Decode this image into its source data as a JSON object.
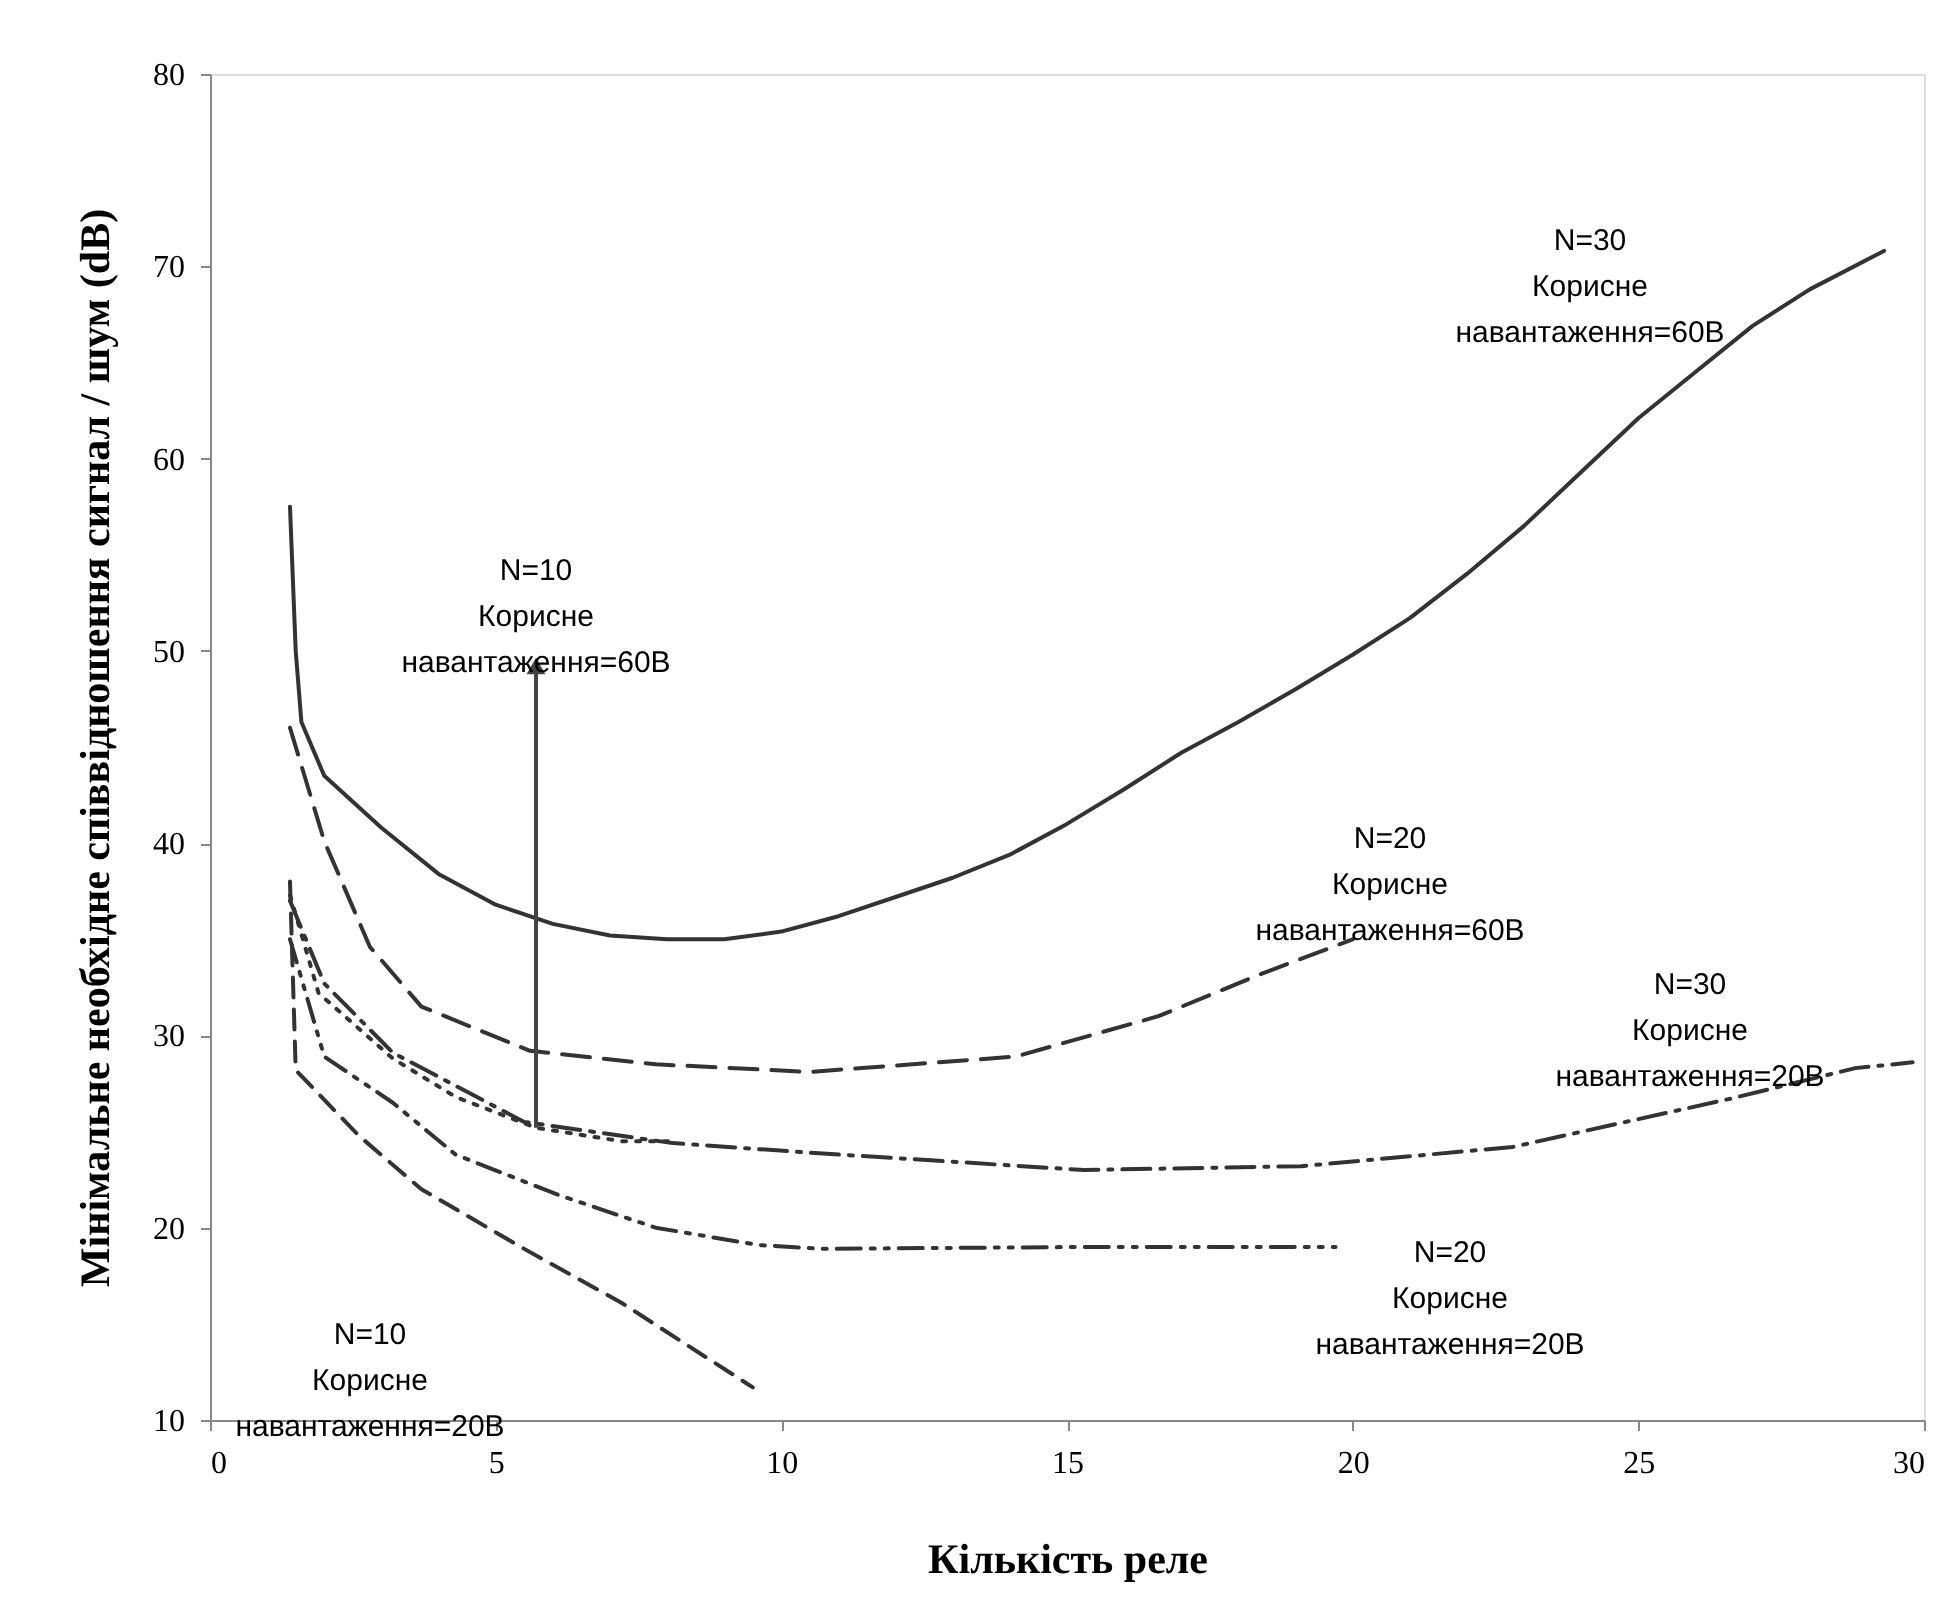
{
  "chart_data": {
    "type": "line",
    "xlabel": "Кількість реле",
    "ylabel": "Мінімальне необхідне співвідношення сигнал / шум (dB)",
    "xlim": [
      0,
      30
    ],
    "ylim": [
      10,
      80
    ],
    "xticks": [
      0,
      5,
      10,
      15,
      20,
      25,
      30
    ],
    "yticks": [
      10,
      20,
      30,
      40,
      50,
      60,
      70,
      80
    ],
    "grid": false,
    "marker": "none",
    "series": [
      {
        "color": "#333333",
        "line_style": "solid",
        "x": [
          1.4,
          1.5,
          1.6,
          2,
          3,
          4,
          5,
          6,
          7,
          8,
          9,
          10,
          11,
          12,
          13,
          14,
          15,
          16,
          17,
          18,
          19,
          20,
          21,
          22,
          23,
          24,
          25,
          26,
          27,
          28,
          29.3
        ],
        "values": [
          57.5,
          50,
          46.3,
          43.5,
          40.8,
          38.4,
          36.8,
          35.8,
          35.2,
          35,
          35,
          35.4,
          36.2,
          37.2,
          38.2,
          39.4,
          41,
          42.8,
          44.7,
          46.3,
          48,
          49.8,
          51.7,
          54,
          56.5,
          59.3,
          62.1,
          64.5,
          66.9,
          68.8,
          70.8
        ]
      },
      {
        "color": "#333333",
        "line_style": "dashed",
        "x": [
          1.4,
          2,
          2.8,
          3.7,
          5.6,
          7.8,
          10.5,
          14.1,
          16.6,
          18.4,
          20
        ],
        "values": [
          46,
          40.1,
          34.6,
          31.5,
          29.2,
          28.5,
          28.1,
          28.9,
          31,
          33.2,
          35
        ]
      },
      {
        "color": "#333333",
        "line_style": "dotted",
        "x": [
          1.4,
          1.9,
          3.2,
          4.3,
          5.7,
          7.2,
          8.1
        ],
        "values": [
          37.3,
          32.2,
          28.8,
          26.8,
          25.2,
          24.5,
          24.5
        ]
      },
      {
        "color": "#333333",
        "line_style": "dashed",
        "x": [
          1.4,
          2,
          3.2,
          5.5,
          8.1,
          10.5,
          15.3,
          19.1,
          22.8,
          26.6,
          28.8,
          29.8
        ],
        "values": [
          37,
          32.7,
          29.1,
          25.5,
          24.4,
          23.9,
          23,
          23.2,
          24.2,
          26.7,
          28.3,
          28.6
        ]
      },
      {
        "color": "#333333",
        "line_style": "dashed",
        "x": [
          1.4,
          2,
          3.2,
          4.3,
          6.1,
          7.8,
          9.6,
          10.7,
          15.3,
          19.7
        ],
        "values": [
          35,
          28.9,
          26.5,
          23.8,
          21.7,
          20,
          19.1,
          18.9,
          19,
          19
        ]
      },
      {
        "color": "#333333",
        "line_style": "dashed",
        "x": [
          1.4,
          1.5,
          2.6,
          3.7,
          5.5,
          7.2,
          8.4,
          9.5
        ],
        "values": [
          38,
          28.2,
          24.8,
          22,
          18.9,
          16.1,
          13.8,
          11.7
        ]
      }
    ],
    "annotations": [
      "N=30\nКорисне\nнавантаження=60В",
      "N=10\nКорисне\nнавантаження=60В",
      "N=20\nКорисне\nнавантаження=60В",
      "N=30\nКорисне\nнавантаження=20В",
      "N=20\nКорисне\nнавантаження=20В",
      "N=10\nКорисне\nнавантаження=20В"
    ]
  }
}
